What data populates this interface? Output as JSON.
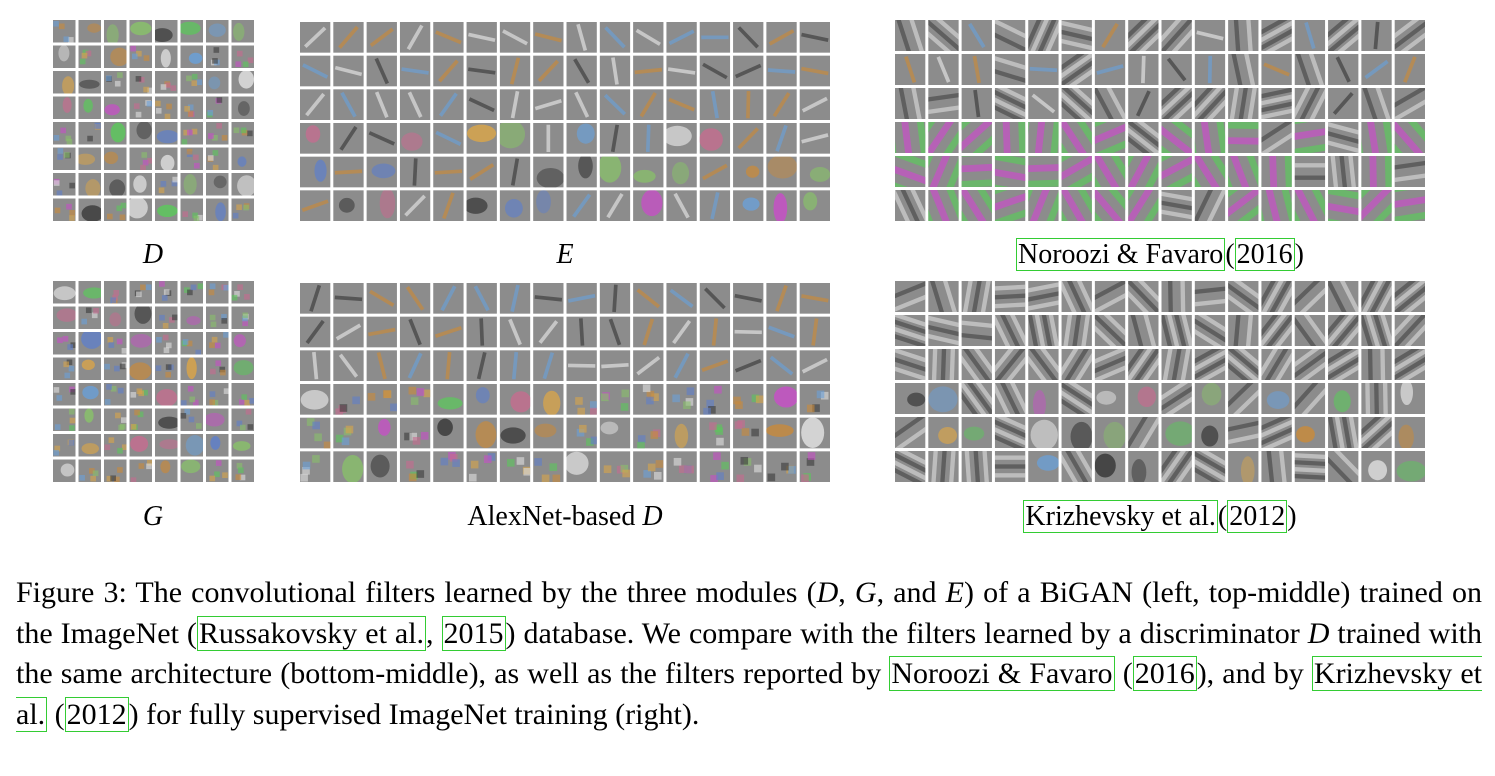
{
  "panels": [
    {
      "id": "d",
      "label_italic": "D",
      "label_plain": ""
    },
    {
      "id": "e",
      "label_italic": "E",
      "label_plain": ""
    },
    {
      "id": "noroozi",
      "label_cite_author": "Noroozi & Favaro",
      "label_open": "(",
      "label_cite_year": "2016",
      "label_close": ")"
    },
    {
      "id": "g",
      "label_italic": "G",
      "label_plain": ""
    },
    {
      "id": "alexnet",
      "label_plain": "AlexNet-based ",
      "label_italic": "D"
    },
    {
      "id": "krizhevsky",
      "label_cite_author": "Krizhevsky et al.",
      "label_open": "(",
      "label_cite_year": "2012",
      "label_close": ")"
    }
  ],
  "filter_palette": {
    "background": "#8c8c8c",
    "grid_line": "#ffffff",
    "accents": [
      "#e0e0e0",
      "#3a3a3a",
      "#c98a3a",
      "#5f7fc9",
      "#c74ec7",
      "#5cc75c",
      "#d9a54a",
      "#6aa0d8",
      "#c76b8f",
      "#88c06a"
    ]
  },
  "caption": {
    "figure_label": "Figure 3:",
    "part1": " The convolutional filters learned by the three modules (",
    "sym_d": "D",
    "sep1": ", ",
    "sym_g": "G",
    "sep2": ", and ",
    "sym_e": "E",
    "part2": ") of a BiGAN (left, top-middle) trained on the ImageNet (",
    "cite1_author": "Russakovsky et al.",
    "cite1_sep": ", ",
    "cite1_year": "2015",
    "part3": ") database.  We compare with the filters learned by a discriminator ",
    "sym_d2": "D",
    "part4": " trained with the same architecture (bottom-middle), as well as the filters reported by ",
    "cite2_author": "Noroozi & Favaro",
    "cite2_open": " (",
    "cite2_year": "2016",
    "part5": "), and by ",
    "cite3_author": "Krizhevsky et al.",
    "cite3_open": " (",
    "cite3_year": "2012",
    "part6": ") for fully supervised ImageNet training (right)."
  }
}
